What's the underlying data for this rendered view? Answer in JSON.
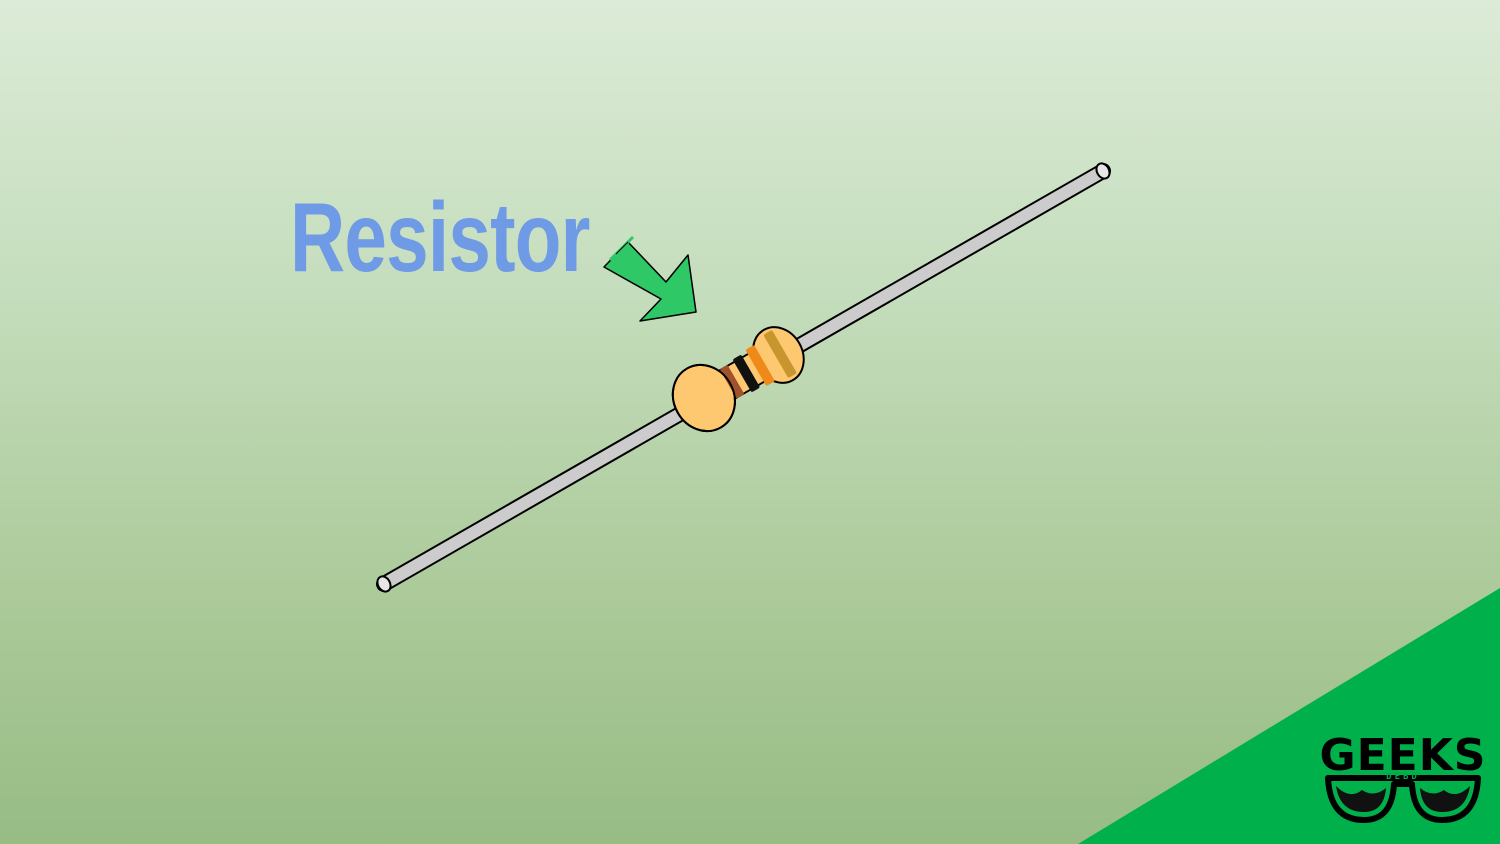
{
  "title": {
    "text": "Resistor",
    "color": "#6f9ae6"
  },
  "diagram": {
    "component": "resistor",
    "arrow_color": "#2ec866",
    "body_color": "#fdc870",
    "lead_color": "#cccccc",
    "band_colors": [
      "#a0522d",
      "#111111",
      "#ef8a1a",
      "#c8962f"
    ]
  },
  "corner": {
    "color": "#00b04b"
  },
  "logo": {
    "text": "GEEKS",
    "subtext": "DEBD",
    "icon": "glasses-icon"
  }
}
